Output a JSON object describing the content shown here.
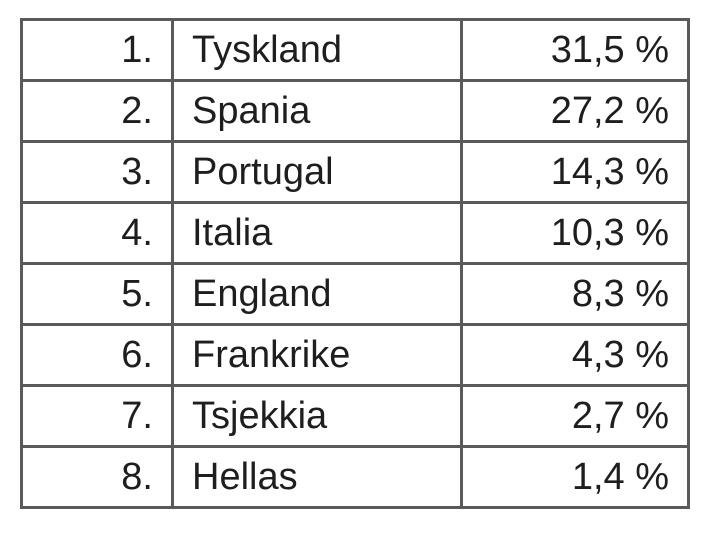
{
  "table": {
    "rows": [
      [
        "1.",
        "Tyskland",
        "31,5 %"
      ],
      [
        "2.",
        "Spania",
        "27,2 %"
      ],
      [
        "3.",
        "Portugal",
        "14,3 %"
      ],
      [
        "4.",
        "Italia",
        "10,3 %"
      ],
      [
        "5.",
        "England",
        "8,3 %"
      ],
      [
        "6.",
        "Frankrike",
        "4,3 %"
      ],
      [
        "7.",
        "Tsjekkia",
        "2,7 %"
      ],
      [
        "8.",
        "Hellas",
        "1,4 %"
      ]
    ]
  }
}
